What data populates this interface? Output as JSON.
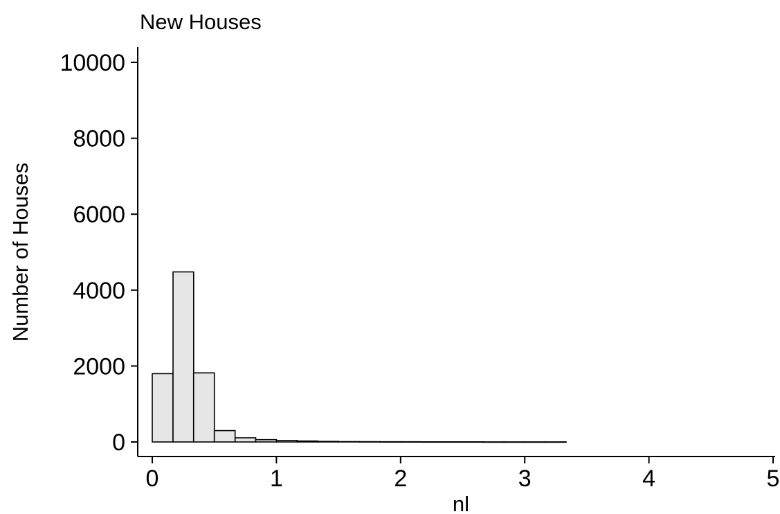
{
  "chart_data": {
    "type": "bar",
    "title": "New Houses",
    "xlabel": "nl",
    "ylabel": "Number of Houses",
    "xlim": [
      0,
      5
    ],
    "ylim": [
      0,
      10000
    ],
    "x_ticks": [
      "0",
      "1",
      "2",
      "3",
      "4",
      "5"
    ],
    "y_ticks": [
      "0",
      "2000",
      "4000",
      "6000",
      "8000",
      "10000"
    ],
    "grid": false,
    "bar_color": "#e6e6e6",
    "bins": [
      {
        "x0": 0.0,
        "x1": 0.167,
        "value": 1800
      },
      {
        "x0": 0.167,
        "x1": 0.333,
        "value": 4480
      },
      {
        "x0": 0.333,
        "x1": 0.5,
        "value": 1820
      },
      {
        "x0": 0.5,
        "x1": 0.667,
        "value": 300
      },
      {
        "x0": 0.667,
        "x1": 0.833,
        "value": 110
      },
      {
        "x0": 0.833,
        "x1": 1.0,
        "value": 60
      },
      {
        "x0": 1.0,
        "x1": 1.167,
        "value": 40
      },
      {
        "x0": 1.167,
        "x1": 1.333,
        "value": 25
      },
      {
        "x0": 1.333,
        "x1": 1.5,
        "value": 15
      },
      {
        "x0": 1.5,
        "x1": 1.667,
        "value": 10
      },
      {
        "x0": 1.667,
        "x1": 1.833,
        "value": 8
      },
      {
        "x0": 1.833,
        "x1": 2.0,
        "value": 6
      },
      {
        "x0": 2.0,
        "x1": 2.167,
        "value": 5
      },
      {
        "x0": 2.167,
        "x1": 2.333,
        "value": 4
      },
      {
        "x0": 2.333,
        "x1": 2.5,
        "value": 3
      },
      {
        "x0": 2.5,
        "x1": 2.667,
        "value": 3
      },
      {
        "x0": 2.667,
        "x1": 2.833,
        "value": 2
      },
      {
        "x0": 2.833,
        "x1": 3.0,
        "value": 2
      },
      {
        "x0": 3.0,
        "x1": 3.167,
        "value": 2
      },
      {
        "x0": 3.167,
        "x1": 3.333,
        "value": 1
      }
    ]
  }
}
